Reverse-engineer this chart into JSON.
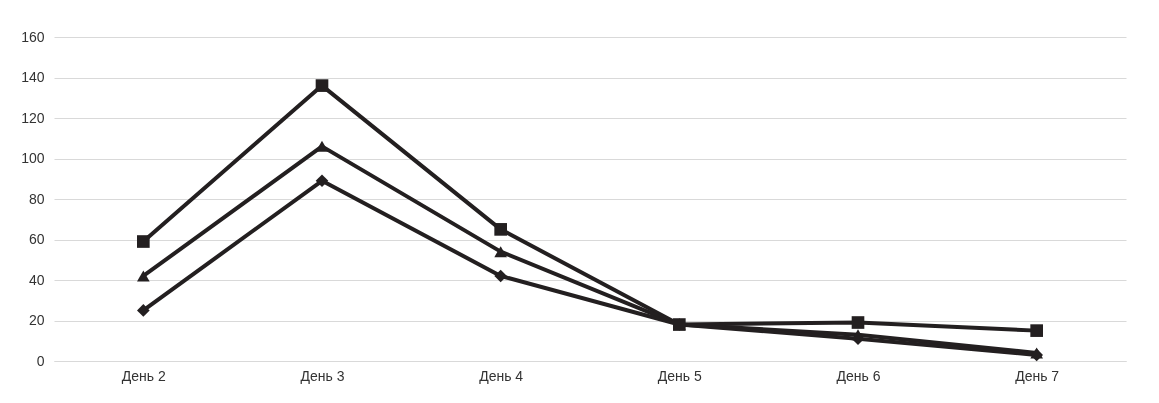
{
  "chart_data": {
    "type": "line",
    "categories": [
      "День 2",
      "День 3",
      "День 4",
      "День 5",
      "День 6",
      "День 7"
    ],
    "series": [
      {
        "color": "#231f20",
        "marker": "square",
        "values": [
          59,
          136,
          65,
          18,
          19,
          15
        ]
      },
      {
        "color": "#231f20",
        "marker": "triangle",
        "values": [
          42,
          106,
          54,
          18,
          13,
          4
        ]
      },
      {
        "color": "#231f20",
        "marker": "diamond",
        "values": [
          25,
          89,
          42,
          18,
          11,
          3
        ]
      }
    ],
    "ylim": [
      0,
      160
    ],
    "yticks": [
      0,
      20,
      40,
      60,
      80,
      100,
      120,
      140,
      160
    ],
    "grid": "y",
    "line_style": "solid"
  }
}
